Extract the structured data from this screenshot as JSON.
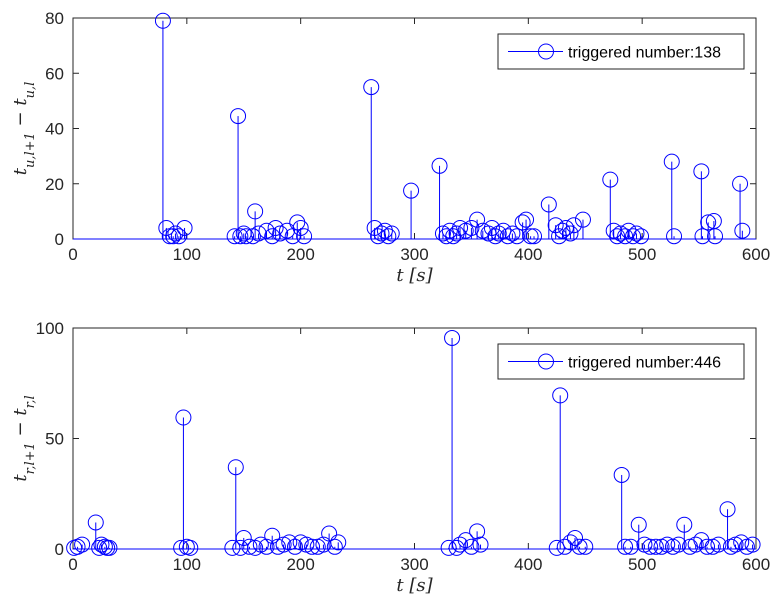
{
  "chart_data": [
    {
      "type": "stem",
      "xlabel": "t [s]",
      "ylabel": "t_{u,l+1} − t_{u,l}",
      "xlim": [
        0,
        600
      ],
      "ylim": [
        0,
        80
      ],
      "xticks": [
        0,
        100,
        200,
        300,
        400,
        500,
        600
      ],
      "yticks": [
        0,
        20,
        40,
        60,
        80
      ],
      "legend_position": "top-right",
      "color": "#0000ff",
      "marker": "circle",
      "series": [
        {
          "name": "triggered number:138",
          "x": [
            79,
            82,
            85,
            88,
            90,
            93,
            98,
            142,
            145,
            147,
            150,
            152,
            158,
            160,
            163,
            170,
            175,
            178,
            182,
            188,
            193,
            197,
            200,
            203,
            262,
            265,
            268,
            271,
            274,
            277,
            280,
            297,
            322,
            325,
            328,
            331,
            334,
            337,
            340,
            345,
            350,
            355,
            360,
            365,
            368,
            371,
            374,
            378,
            382,
            386,
            390,
            395,
            398,
            402,
            405,
            418,
            424,
            427,
            430,
            433,
            437,
            440,
            448,
            472,
            475,
            478,
            481,
            485,
            488,
            492,
            495,
            499,
            526,
            528,
            552,
            553,
            558,
            563,
            564,
            586,
            588
          ],
          "values": [
            79,
            4,
            1,
            1,
            2,
            1,
            4,
            1,
            44.5,
            1,
            2,
            1,
            1,
            10,
            2,
            3,
            1,
            4,
            2,
            3,
            1,
            6,
            4,
            1,
            55,
            4,
            1,
            2,
            3,
            1,
            2,
            17.5,
            26.5,
            2,
            1,
            3,
            1,
            2,
            4,
            3,
            4,
            7,
            3,
            2,
            4,
            1,
            2,
            3,
            1,
            2,
            1,
            6,
            7,
            1,
            1,
            12.5,
            5,
            1,
            3,
            4,
            2,
            5,
            7,
            21.5,
            3,
            1,
            2,
            1,
            3,
            1,
            2,
            1,
            28,
            1,
            24.5,
            1,
            6,
            6.5,
            1,
            20,
            3
          ]
        }
      ]
    },
    {
      "type": "stem",
      "xlabel": "t [s]",
      "ylabel": "t_{r,l+1} − t_{r,l}",
      "xlim": [
        0,
        600
      ],
      "ylim": [
        0,
        100
      ],
      "xticks": [
        0,
        100,
        200,
        300,
        400,
        500,
        600
      ],
      "yticks": [
        0,
        50,
        100
      ],
      "legend_position": "top-right",
      "color": "#0000ff",
      "marker": "circle",
      "series": [
        {
          "name": "triggered number:446",
          "x": [
            1,
            4,
            8,
            20,
            23,
            25,
            28,
            30,
            32,
            95,
            97,
            100,
            103,
            140,
            143,
            147,
            150,
            155,
            160,
            165,
            170,
            175,
            180,
            185,
            190,
            195,
            200,
            205,
            210,
            215,
            220,
            225,
            230,
            233,
            330,
            333,
            337,
            340,
            345,
            350,
            355,
            358,
            425,
            428,
            432,
            437,
            441,
            445,
            450,
            482,
            485,
            490,
            497,
            502,
            507,
            512,
            517,
            522,
            527,
            532,
            537,
            542,
            547,
            552,
            557,
            562,
            567,
            575,
            578,
            582,
            587,
            592,
            597
          ],
          "values": [
            0.5,
            1,
            2,
            12,
            0.5,
            2,
            1,
            0.5,
            0.5,
            0.5,
            59.5,
            1,
            0.5,
            0.5,
            37,
            0.5,
            5,
            1,
            0.5,
            2,
            1,
            6,
            1,
            2,
            3,
            1,
            3,
            2,
            1,
            1,
            2,
            7,
            1,
            3,
            0.5,
            95.5,
            0.5,
            2,
            4,
            1,
            8,
            2,
            0.5,
            69.5,
            1,
            3,
            5,
            1,
            1,
            33.5,
            1,
            1,
            11,
            2,
            1,
            1,
            1,
            2,
            1,
            2,
            11,
            1,
            2,
            4,
            1,
            1,
            2,
            18,
            1,
            2,
            3,
            1,
            2
          ]
        }
      ]
    }
  ]
}
